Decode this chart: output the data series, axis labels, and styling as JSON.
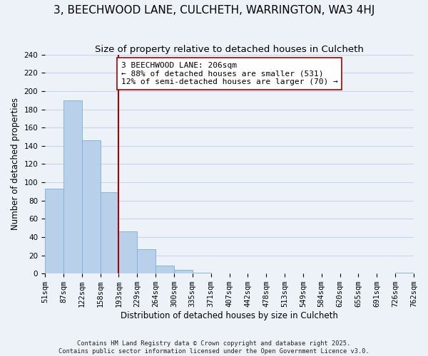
{
  "title": "3, BEECHWOOD LANE, CULCHETH, WARRINGTON, WA3 4HJ",
  "subtitle": "Size of property relative to detached houses in Culcheth",
  "xlabel": "Distribution of detached houses by size in Culcheth",
  "ylabel": "Number of detached properties",
  "bar_values": [
    93,
    190,
    146,
    89,
    46,
    27,
    9,
    4,
    1,
    0,
    0,
    0,
    0,
    0,
    0,
    0,
    0,
    0,
    0,
    1
  ],
  "bin_labels": [
    "51sqm",
    "87sqm",
    "122sqm",
    "158sqm",
    "193sqm",
    "229sqm",
    "264sqm",
    "300sqm",
    "335sqm",
    "371sqm",
    "407sqm",
    "442sqm",
    "478sqm",
    "513sqm",
    "549sqm",
    "584sqm",
    "620sqm",
    "655sqm",
    "691sqm",
    "726sqm",
    "762sqm"
  ],
  "bar_color": "#b8d0ea",
  "bar_edge_color": "#7aafd4",
  "grid_color": "#c8d4e8",
  "vline_x": 4,
  "vline_color": "#aa0000",
  "annotation_text": "3 BEECHWOOD LANE: 206sqm\n← 88% of detached houses are smaller (531)\n12% of semi-detached houses are larger (70) →",
  "annotation_bbox_facecolor": "#ffffff",
  "annotation_bbox_edgecolor": "#aa0000",
  "ylim": [
    0,
    240
  ],
  "yticks": [
    0,
    20,
    40,
    60,
    80,
    100,
    120,
    140,
    160,
    180,
    200,
    220,
    240
  ],
  "footer_line1": "Contains HM Land Registry data © Crown copyright and database right 2025.",
  "footer_line2": "Contains public sector information licensed under the Open Government Licence v3.0.",
  "bg_color": "#edf2f9",
  "title_fontsize": 11,
  "subtitle_fontsize": 9.5,
  "axis_label_fontsize": 8.5,
  "tick_fontsize": 7.5,
  "annotation_fontsize": 8
}
